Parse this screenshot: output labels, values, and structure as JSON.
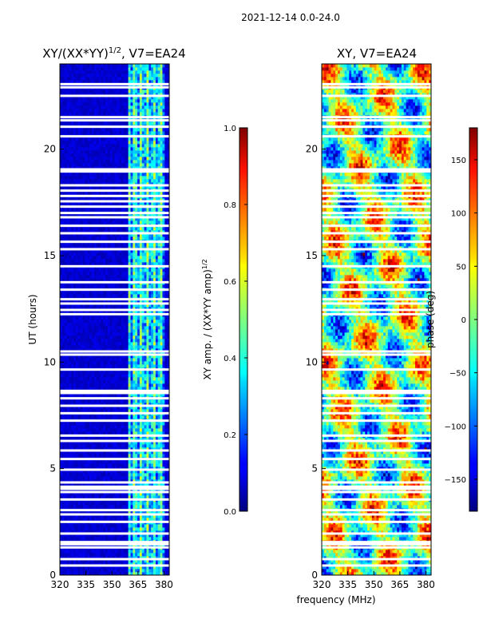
{
  "figure": {
    "suptitle": "2021-12-14 0.0-24.0",
    "xlabel": "frequency (MHz)"
  },
  "chart_data": [
    {
      "type": "heatmap",
      "title": "XY/(XX*YY)^1/2, V7=EA24",
      "title_main": "XY/(XX*YY)",
      "title_exp": "1/2",
      "title_tail": ", V7=EA24",
      "xlabel": "frequency (MHz)",
      "ylabel": "UT (hours)",
      "xlim": [
        320,
        383
      ],
      "ylim": [
        0,
        24
      ],
      "xticks": [
        320,
        335,
        350,
        365,
        380
      ],
      "yticks": [
        0,
        5,
        10,
        15,
        20
      ],
      "colormap": "jet",
      "colorbar": {
        "label_main": "XY amp. / (XX*YY amp)",
        "label_exp": "1/2",
        "range": [
          0.0,
          1.0
        ],
        "ticks": [
          "0.0",
          "0.2",
          "0.4",
          "0.6",
          "0.8",
          "1.0"
        ],
        "tick_values": [
          0.0,
          0.2,
          0.4,
          0.6,
          0.8,
          1.0
        ]
      },
      "description_bands_mhz": [
        [
          360,
          381
        ]
      ]
    },
    {
      "type": "heatmap",
      "title": "XY, V7=EA24",
      "xlabel": "frequency (MHz)",
      "ylabel": "",
      "xlim": [
        320,
        383
      ],
      "ylim": [
        0,
        24
      ],
      "xticks": [
        320,
        335,
        350,
        365,
        380
      ],
      "yticks": [
        0,
        5,
        10,
        15,
        20
      ],
      "colormap": "jet",
      "colorbar": {
        "label": "phase (deg)",
        "range": [
          -180,
          180
        ],
        "ticks": [
          "150",
          "100",
          "50",
          "0",
          "−50",
          "−100",
          "−150"
        ],
        "tick_values": [
          150,
          100,
          50,
          0,
          -50,
          -100,
          -150
        ]
      }
    }
  ],
  "gaps_hours": [
    0.45,
    0.75,
    1.3,
    1.45,
    1.55,
    1.95,
    2.5,
    2.85,
    3.05,
    3.55,
    3.9,
    4.05,
    4.15,
    4.35,
    4.95,
    5.45,
    5.85,
    6.3,
    6.55,
    7.25,
    7.6,
    7.95,
    8.3,
    8.55,
    8.65,
    9.65,
    10.35,
    10.5,
    12.25,
    12.45,
    12.75,
    12.95,
    13.4,
    13.75,
    14.5,
    15.3,
    15.65,
    16.05,
    16.4,
    16.8,
    17.0,
    17.3,
    17.55,
    17.8,
    18.05,
    18.3,
    18.95,
    19.05,
    20.6,
    21.05,
    21.35,
    21.5,
    22.5,
    22.9,
    23.05
  ]
}
